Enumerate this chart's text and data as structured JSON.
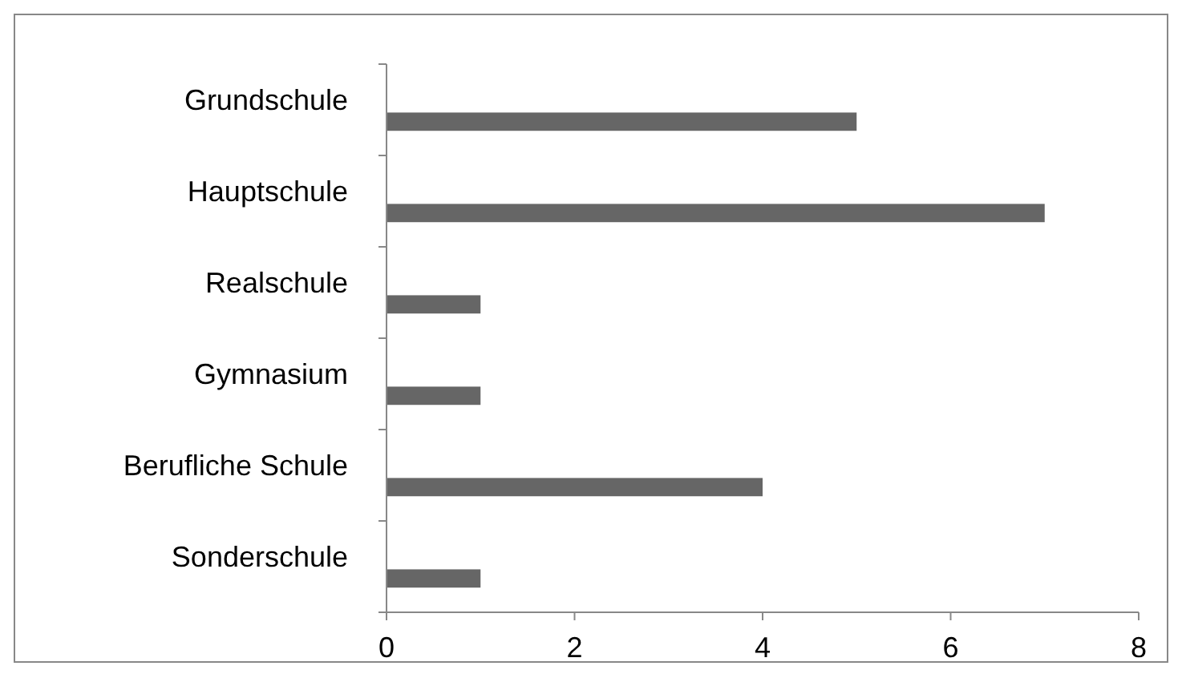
{
  "chart_data": {
    "type": "bar",
    "orientation": "horizontal",
    "categories": [
      "Grundschule",
      "Hauptschule",
      "Realschule",
      "Gymnasium",
      "Berufliche Schule",
      "Sonderschule"
    ],
    "values": [
      5,
      7,
      1,
      1,
      4,
      1
    ],
    "color": "#666666",
    "xlim": [
      0,
      8
    ],
    "xticks": [
      0,
      2,
      4,
      6,
      8
    ],
    "grid": false
  }
}
